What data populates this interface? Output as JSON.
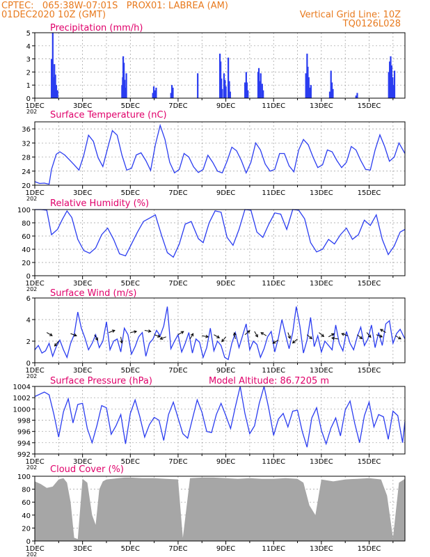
{
  "header": {
    "line1": "CPTEC:   065:38W-07:01S   PROX01: LABREA (AM)",
    "line2": "01DEC2020 10Z (GMT)",
    "grid_note": "Vertical Grid Line: 10Z",
    "code": "TQ0126L028"
  },
  "colors": {
    "header": "#e87a1e",
    "title": "#e0006a",
    "series": "#2a3cf0",
    "cloud": "#a6a6a6",
    "arrows": "#000000"
  },
  "x_ticks": [
    "1DEC",
    "3DEC",
    "5DEC",
    "7DEC",
    "9DEC",
    "11DEC",
    "13DEC",
    "15DEC"
  ],
  "x_sublabel": "202",
  "chart_data": [
    {
      "id": "precip",
      "type": "bar",
      "title": "Precipitation (mm/h)",
      "x_unit": "day index from 1DEC 10Z",
      "ylim": [
        0,
        5
      ],
      "yticks": [
        0,
        1,
        2,
        3,
        4,
        5
      ],
      "points": [
        [
          0.7,
          3.0
        ],
        [
          0.72,
          2.2
        ],
        [
          0.75,
          5.0
        ],
        [
          0.78,
          1.6
        ],
        [
          0.82,
          2.6
        ],
        [
          0.86,
          1.8
        ],
        [
          0.9,
          1.0
        ],
        [
          0.95,
          0.6
        ],
        [
          3.65,
          1.0
        ],
        [
          3.68,
          1.6
        ],
        [
          3.7,
          3.2
        ],
        [
          3.73,
          2.7
        ],
        [
          3.76,
          1.4
        ],
        [
          3.8,
          0.8
        ],
        [
          3.83,
          1.9
        ],
        [
          4.94,
          0.4
        ],
        [
          4.98,
          0.9
        ],
        [
          5.02,
          0.6
        ],
        [
          5.08,
          0.8
        ],
        [
          5.7,
          0.4
        ],
        [
          5.74,
          1.0
        ],
        [
          5.78,
          0.8
        ],
        [
          6.82,
          1.9
        ],
        [
          7.75,
          3.4
        ],
        [
          7.78,
          2.8
        ],
        [
          7.81,
          1.5
        ],
        [
          7.84,
          0.7
        ],
        [
          7.92,
          1.9
        ],
        [
          7.96,
          1.4
        ],
        [
          8.0,
          0.9
        ],
        [
          8.1,
          3.1
        ],
        [
          8.14,
          1.3
        ],
        [
          8.18,
          0.5
        ],
        [
          8.8,
          1.2
        ],
        [
          8.85,
          2.0
        ],
        [
          8.88,
          1.2
        ],
        [
          8.92,
          0.6
        ],
        [
          9.35,
          2.0
        ],
        [
          9.38,
          2.3
        ],
        [
          9.42,
          1.3
        ],
        [
          9.46,
          1.9
        ],
        [
          9.52,
          1.1
        ],
        [
          9.56,
          0.6
        ],
        [
          11.35,
          1.9
        ],
        [
          11.4,
          3.4
        ],
        [
          11.43,
          2.4
        ],
        [
          11.47,
          1.6
        ],
        [
          11.52,
          0.8
        ],
        [
          11.56,
          1.0
        ],
        [
          12.35,
          0.5
        ],
        [
          12.4,
          2.1
        ],
        [
          12.44,
          1.2
        ],
        [
          12.48,
          0.7
        ],
        [
          13.45,
          0.2
        ],
        [
          13.5,
          0.4
        ],
        [
          14.82,
          2.0
        ],
        [
          14.86,
          2.8
        ],
        [
          14.9,
          3.2
        ],
        [
          14.94,
          2.5
        ],
        [
          14.98,
          1.6
        ],
        [
          15.02,
          1.0
        ],
        [
          15.06,
          2.1
        ]
      ]
    },
    {
      "id": "temp",
      "type": "line",
      "title": "Surface Temperature (nC)",
      "ylim": [
        20,
        38
      ],
      "yticks": [
        20,
        24,
        28,
        32,
        36
      ],
      "x": [
        0,
        0.2,
        0.4,
        0.6,
        0.7,
        0.9,
        1.05,
        1.25,
        1.45,
        1.65,
        1.85,
        2.05,
        2.25,
        2.45,
        2.65,
        2.85,
        3.05,
        3.25,
        3.45,
        3.65,
        3.85,
        4.05,
        4.25,
        4.45,
        4.65,
        4.85,
        5.05,
        5.25,
        5.45,
        5.65,
        5.85,
        6.05,
        6.25,
        6.45,
        6.65,
        6.85,
        7.05,
        7.25,
        7.45,
        7.65,
        7.85,
        8.05,
        8.25,
        8.45,
        8.65,
        8.85,
        9.05,
        9.25,
        9.45,
        9.65,
        9.85,
        10.05,
        10.25,
        10.45,
        10.65,
        10.85,
        11.05,
        11.25,
        11.45,
        11.65,
        11.85,
        12.05,
        12.25,
        12.45,
        12.65,
        12.85,
        13.05,
        13.25,
        13.45,
        13.65,
        13.85,
        14.05,
        14.25,
        14.45,
        14.65,
        14.85,
        15.05,
        15.25,
        15.5
      ],
      "y": [
        21,
        20.5,
        20.6,
        20.3,
        24.5,
        28.8,
        29.5,
        28.6,
        27.2,
        25.8,
        24.3,
        28.5,
        34.2,
        32.5,
        27.8,
        25.3,
        30.5,
        35.5,
        34.2,
        28.5,
        24.3,
        24.8,
        28.6,
        29.2,
        27.0,
        24.2,
        31.5,
        37.0,
        33.0,
        26.5,
        23.5,
        24.5,
        29.0,
        28.0,
        25.2,
        23.6,
        24.5,
        28.5,
        26.5,
        24.0,
        23.5,
        26.8,
        30.8,
        29.8,
        27.0,
        23.5,
        26.5,
        32.0,
        30.0,
        26.0,
        24.0,
        24.5,
        29.0,
        29.0,
        25.5,
        23.8,
        30.0,
        33.0,
        31.5,
        28.0,
        25.0,
        25.8,
        30.0,
        29.5,
        27.0,
        25.0,
        26.5,
        31.0,
        30.0,
        27.0,
        24.5,
        24.3,
        30.0,
        34.3,
        31.0,
        26.8,
        28.0,
        32.0,
        29.0
      ]
    },
    {
      "id": "rh",
      "type": "line",
      "title": "Relative Humidity (%)",
      "ylim": [
        0,
        100
      ],
      "yticks": [
        0,
        20,
        40,
        60,
        80,
        100
      ],
      "x": [
        0,
        0.25,
        0.5,
        0.7,
        0.95,
        1.15,
        1.35,
        1.55,
        1.8,
        2.05,
        2.3,
        2.55,
        2.8,
        3.05,
        3.3,
        3.55,
        3.8,
        4.05,
        4.3,
        4.55,
        4.85,
        5.05,
        5.3,
        5.55,
        5.8,
        6.05,
        6.3,
        6.55,
        6.85,
        7.05,
        7.3,
        7.55,
        7.8,
        8.05,
        8.3,
        8.55,
        8.8,
        9.05,
        9.3,
        9.55,
        9.8,
        10.05,
        10.3,
        10.55,
        10.8,
        11.05,
        11.3,
        11.55,
        11.8,
        12.05,
        12.3,
        12.55,
        12.8,
        13.05,
        13.3,
        13.55,
        13.8,
        14.05,
        14.3,
        14.55,
        14.8,
        15.05,
        15.3,
        15.5
      ],
      "y": [
        100,
        100,
        99,
        62,
        70,
        85,
        98,
        88,
        55,
        38,
        34,
        42,
        62,
        72,
        55,
        33,
        30,
        48,
        66,
        82,
        88,
        92,
        62,
        35,
        28,
        48,
        78,
        82,
        56,
        50,
        80,
        98,
        96,
        58,
        46,
        70,
        100,
        99,
        66,
        58,
        78,
        95,
        93,
        70,
        100,
        99,
        86,
        50,
        36,
        40,
        55,
        48,
        62,
        72,
        55,
        62,
        84,
        76,
        92,
        55,
        32,
        45,
        66,
        70
      ]
    },
    {
      "id": "wind",
      "type": "line",
      "title": "Surface Wind (m/s)",
      "ylim": [
        0,
        6
      ],
      "yticks": [
        0,
        2,
        4,
        6
      ],
      "x": [
        0,
        0.15,
        0.3,
        0.45,
        0.6,
        0.75,
        0.9,
        1.05,
        1.2,
        1.35,
        1.5,
        1.65,
        1.8,
        1.95,
        2.1,
        2.25,
        2.4,
        2.55,
        2.7,
        2.85,
        3.0,
        3.15,
        3.3,
        3.45,
        3.6,
        3.75,
        3.9,
        4.05,
        4.2,
        4.35,
        4.5,
        4.65,
        4.8,
        4.95,
        5.1,
        5.25,
        5.4,
        5.55,
        5.7,
        5.85,
        6.0,
        6.15,
        6.3,
        6.45,
        6.6,
        6.75,
        6.9,
        7.05,
        7.2,
        7.35,
        7.5,
        7.65,
        7.8,
        7.95,
        8.1,
        8.25,
        8.4,
        8.55,
        8.7,
        8.85,
        9.0,
        9.15,
        9.3,
        9.45,
        9.6,
        9.75,
        9.9,
        10.05,
        10.2,
        10.35,
        10.5,
        10.65,
        10.8,
        10.95,
        11.1,
        11.25,
        11.4,
        11.55,
        11.7,
        11.85,
        12.0,
        12.15,
        12.3,
        12.45,
        12.6,
        12.75,
        12.9,
        13.05,
        13.2,
        13.35,
        13.5,
        13.65,
        13.8,
        13.95,
        14.1,
        14.25,
        14.4,
        14.55,
        14.7,
        14.85,
        15.0,
        15.15,
        15.3,
        15.5
      ],
      "y": [
        1.2,
        1.6,
        0.9,
        1.1,
        1.8,
        0.6,
        1.5,
        2.1,
        1.2,
        0.5,
        1.8,
        2.6,
        4.7,
        3.2,
        2.3,
        1.2,
        1.8,
        2.6,
        1.4,
        2.0,
        3.8,
        1.2,
        2.0,
        2.2,
        1.0,
        3.2,
        2.6,
        0.8,
        1.5,
        2.4,
        2.8,
        0.6,
        1.8,
        2.2,
        3.0,
        2.5,
        3.4,
        5.2,
        1.3,
        2.0,
        2.6,
        1.0,
        1.8,
        2.8,
        0.9,
        2.2,
        1.9,
        0.5,
        1.4,
        3.2,
        1.1,
        2.0,
        1.6,
        0.5,
        0.3,
        1.8,
        2.8,
        1.4,
        2.5,
        3.6,
        1.2,
        2.0,
        1.7,
        0.5,
        1.3,
        2.4,
        2.9,
        1.0,
        2.3,
        4.0,
        2.6,
        1.3,
        2.8,
        5.2,
        3.4,
        0.9,
        2.1,
        4.2,
        1.5,
        2.5,
        1.0,
        2.0,
        1.6,
        1.2,
        3.5,
        1.8,
        1.1,
        2.9,
        1.8,
        1.2,
        2.4,
        3.3,
        1.6,
        2.2,
        3.5,
        1.4,
        2.8,
        1.6,
        3.6,
        3.9,
        1.8,
        2.7,
        3.1,
        2.2
      ]
    },
    {
      "id": "pres",
      "type": "line",
      "title": "Surface Pressure (hPa)",
      "annotation": "Model Altitude: 86.7205 m",
      "ylim": [
        992,
        1004
      ],
      "yticks": [
        992,
        994,
        996,
        998,
        1000,
        1002,
        1004
      ],
      "x": [
        0,
        0.2,
        0.4,
        0.6,
        0.8,
        1.0,
        1.2,
        1.4,
        1.6,
        1.8,
        2.0,
        2.2,
        2.4,
        2.6,
        2.8,
        3.0,
        3.2,
        3.4,
        3.6,
        3.8,
        4.0,
        4.2,
        4.4,
        4.6,
        4.8,
        5.0,
        5.2,
        5.4,
        5.6,
        5.8,
        6.0,
        6.2,
        6.4,
        6.6,
        6.8,
        7.0,
        7.2,
        7.4,
        7.6,
        7.8,
        8.0,
        8.2,
        8.4,
        8.6,
        8.8,
        9.0,
        9.2,
        9.4,
        9.6,
        9.8,
        10.0,
        10.2,
        10.4,
        10.6,
        10.8,
        11.0,
        11.2,
        11.4,
        11.6,
        11.8,
        12.0,
        12.2,
        12.4,
        12.6,
        12.8,
        13.0,
        13.2,
        13.4,
        13.6,
        13.8,
        14.0,
        14.2,
        14.4,
        14.6,
        14.8,
        15.0,
        15.2,
        15.4,
        15.5
      ],
      "y": [
        1002.2,
        1002.6,
        1003.0,
        1002.5,
        999.0,
        995.0,
        999.5,
        1001.8,
        997.5,
        1000.8,
        1001.0,
        996.5,
        994.0,
        997.0,
        1000.6,
        1000.2,
        995.5,
        997.0,
        999.0,
        993.8,
        999.2,
        1001.6,
        998.6,
        995.0,
        997.2,
        998.5,
        998.0,
        994.4,
        999.0,
        1001.2,
        998.4,
        995.6,
        994.8,
        998.2,
        1001.6,
        999.4,
        996.0,
        995.8,
        999.0,
        1001.0,
        998.8,
        996.5,
        1000.4,
        1004.0,
        999.2,
        995.6,
        997.0,
        1001.0,
        1004.0,
        1000.0,
        995.3,
        998.2,
        999.2,
        996.8,
        999.6,
        999.8,
        996.0,
        993.2,
        998.4,
        1000.2,
        996.2,
        993.8,
        996.6,
        998.4,
        995.2,
        999.8,
        1001.4,
        997.4,
        994.0,
        998.8,
        1001.2,
        996.8,
        999.0,
        998.6,
        994.6,
        999.6,
        998.8,
        994.0,
        997.8
      ]
    },
    {
      "id": "cloud",
      "type": "bar",
      "title": "Cloud Cover (%)",
      "ylim": [
        0,
        100
      ],
      "yticks": [
        0,
        20,
        40,
        60,
        80,
        100
      ],
      "x": [
        0,
        0.25,
        0.5,
        0.75,
        1.0,
        1.2,
        1.35,
        1.5,
        1.65,
        1.8,
        2.0,
        2.2,
        2.4,
        2.55,
        2.7,
        2.85,
        3.0,
        3.25,
        3.5,
        3.75,
        4.0,
        4.5,
        5.0,
        5.5,
        6.0,
        6.2,
        6.5,
        7.0,
        7.5,
        8.0,
        8.5,
        9.0,
        9.5,
        10.0,
        10.5,
        11.0,
        11.25,
        11.5,
        11.75,
        12.0,
        12.5,
        13.0,
        13.5,
        14.0,
        14.5,
        14.75,
        15.0,
        15.25,
        15.5
      ],
      "y": [
        92,
        88,
        82,
        84,
        95,
        97,
        90,
        60,
        5,
        3,
        96,
        90,
        40,
        25,
        80,
        92,
        95,
        96,
        97,
        98,
        98,
        97,
        97,
        96,
        95,
        5,
        97,
        98,
        98,
        97,
        96,
        97,
        96,
        96,
        97,
        96,
        90,
        55,
        40,
        95,
        92,
        95,
        96,
        97,
        95,
        70,
        5,
        90,
        96
      ]
    }
  ],
  "wind_arrows": [
    [
      0.5,
      2.8,
      -30
    ],
    [
      1.0,
      2.0,
      230
    ],
    [
      1.5,
      2.7,
      -20
    ],
    [
      2.5,
      2.6,
      -60
    ],
    [
      3.1,
      2.8,
      20
    ],
    [
      3.6,
      2.4,
      -80
    ],
    [
      4.0,
      2.8,
      10
    ],
    [
      4.6,
      3.0,
      -10
    ],
    [
      5.0,
      2.6,
      -20
    ],
    [
      5.5,
      2.4,
      200
    ],
    [
      6.0,
      2.6,
      30
    ],
    [
      6.5,
      2.2,
      60
    ],
    [
      7.0,
      2.5,
      -10
    ],
    [
      7.5,
      2.6,
      -30
    ],
    [
      8.0,
      2.4,
      230
    ],
    [
      8.4,
      2.2,
      100
    ],
    [
      8.8,
      2.6,
      40
    ],
    [
      9.2,
      2.9,
      -60
    ],
    [
      9.7,
      2.5,
      150
    ],
    [
      10.2,
      2.1,
      210
    ],
    [
      10.6,
      2.8,
      -70
    ],
    [
      11.0,
      2.2,
      220
    ],
    [
      11.4,
      2.6,
      -40
    ],
    [
      11.9,
      2.8,
      -40
    ],
    [
      12.3,
      2.4,
      30
    ],
    [
      12.7,
      2.2,
      170
    ],
    [
      13.1,
      2.5,
      160
    ],
    [
      13.5,
      2.6,
      -40
    ],
    [
      13.9,
      2.8,
      -50
    ],
    [
      14.3,
      2.6,
      -20
    ],
    [
      14.7,
      2.8,
      150
    ],
    [
      15.1,
      2.5,
      -30
    ]
  ]
}
